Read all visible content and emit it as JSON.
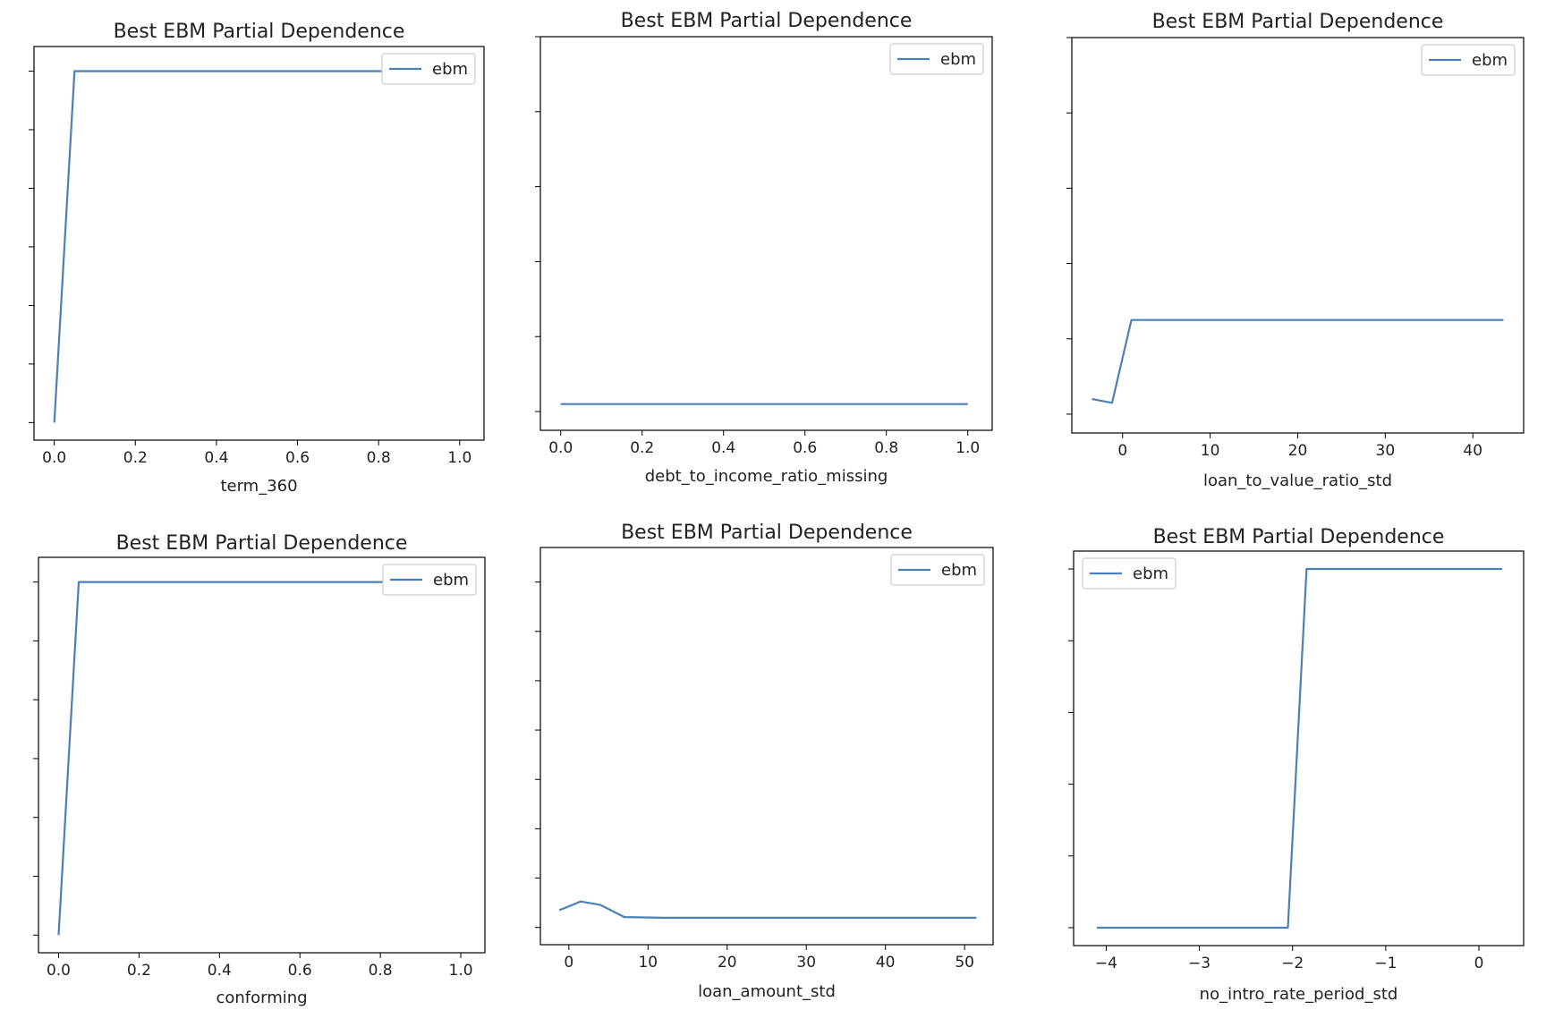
{
  "colors": {
    "line": "#4c7fb5",
    "axes": "#000000",
    "legend_border": "#cccccc",
    "background": "#ffffff"
  },
  "chart_data": [
    {
      "type": "line",
      "title": "Best EBM Partial Dependence",
      "xlabel": "term_360",
      "xticks": [
        0.0,
        0.2,
        0.4,
        0.6,
        0.8,
        1.0
      ],
      "xtick_labels": [
        "0.0",
        "0.2",
        "0.4",
        "0.6",
        "0.8",
        "1.0"
      ],
      "xlim": [
        -0.05,
        1.06
      ],
      "ylim": [
        -0.05,
        1.07
      ],
      "y_tick_count": 7,
      "legend": {
        "position": "upper right",
        "entries": [
          "ebm"
        ]
      },
      "series": [
        {
          "name": "ebm",
          "x": [
            0.0,
            0.05,
            1.0
          ],
          "y": [
            0.0,
            1.0,
            1.0
          ]
        }
      ]
    },
    {
      "type": "line",
      "title": "Best EBM Partial Dependence",
      "xlabel": "debt_to_income_ratio_missing",
      "xticks": [
        0.0,
        0.2,
        0.4,
        0.6,
        0.8,
        1.0
      ],
      "xtick_labels": [
        "0.0",
        "0.2",
        "0.4",
        "0.6",
        "0.8",
        "1.0"
      ],
      "xlim": [
        -0.05,
        1.06
      ],
      "ylim": [
        -0.05,
        1.0
      ],
      "y_tick_count": 6,
      "legend": {
        "position": "upper right",
        "entries": [
          "ebm"
        ]
      },
      "series": [
        {
          "name": "ebm",
          "x": [
            0.0,
            1.0
          ],
          "y": [
            0.02,
            0.02
          ]
        }
      ]
    },
    {
      "type": "line",
      "title": "Best EBM Partial Dependence",
      "xlabel": "loan_to_value_ratio_std",
      "xticks": [
        0,
        10,
        20,
        30,
        40
      ],
      "xtick_labels": [
        "0",
        "10",
        "20",
        "30",
        "40"
      ],
      "xlim": [
        -5.8,
        45.8
      ],
      "ylim": [
        -0.05,
        1.0
      ],
      "y_tick_count": 6,
      "legend": {
        "position": "upper right",
        "entries": [
          "ebm"
        ]
      },
      "series": [
        {
          "name": "ebm",
          "x": [
            -3.5,
            -1.2,
            1.0,
            43.5
          ],
          "y": [
            0.04,
            0.03,
            0.25,
            0.25
          ]
        }
      ]
    },
    {
      "type": "line",
      "title": "Best EBM Partial Dependence",
      "xlabel": "conforming",
      "xticks": [
        0.0,
        0.2,
        0.4,
        0.6,
        0.8,
        1.0
      ],
      "xtick_labels": [
        "0.0",
        "0.2",
        "0.4",
        "0.6",
        "0.8",
        "1.0"
      ],
      "xlim": [
        -0.05,
        1.06
      ],
      "ylim": [
        -0.05,
        1.07
      ],
      "y_tick_count": 7,
      "legend": {
        "position": "upper right",
        "entries": [
          "ebm"
        ]
      },
      "series": [
        {
          "name": "ebm",
          "x": [
            0.0,
            0.05,
            1.0
          ],
          "y": [
            0.0,
            1.0,
            1.0
          ]
        }
      ]
    },
    {
      "type": "line",
      "title": "Best EBM Partial Dependence",
      "xlabel": "loan_amount_std",
      "xticks": [
        0,
        10,
        20,
        30,
        40,
        50
      ],
      "xtick_labels": [
        "0",
        "10",
        "20",
        "30",
        "40",
        "50"
      ],
      "xlim": [
        -3.6,
        53.6
      ],
      "ylim": [
        -0.05,
        1.1
      ],
      "y_tick_count": 8,
      "legend": {
        "position": "upper right",
        "entries": [
          "ebm"
        ]
      },
      "series": [
        {
          "name": "ebm",
          "x": [
            -1.2,
            1.5,
            4.0,
            7.0,
            12.0,
            51.5
          ],
          "y": [
            0.05,
            0.075,
            0.065,
            0.03,
            0.028,
            0.028
          ]
        }
      ]
    },
    {
      "type": "line",
      "title": "Best EBM Partial Dependence",
      "xlabel": "no_intro_rate_period_std",
      "xticks": [
        -4,
        -3,
        -2,
        -1,
        0
      ],
      "xtick_labels": [
        "−4",
        "−3",
        "−2",
        "−1",
        "0"
      ],
      "xlim": [
        -4.35,
        0.48
      ],
      "ylim": [
        -0.05,
        1.05
      ],
      "y_tick_count": 6,
      "legend": {
        "position": "upper left",
        "entries": [
          "ebm"
        ]
      },
      "series": [
        {
          "name": "ebm",
          "x": [
            -4.1,
            -2.05,
            -1.85,
            0.25
          ],
          "y": [
            0.0,
            0.0,
            1.0,
            1.0
          ]
        }
      ]
    }
  ]
}
